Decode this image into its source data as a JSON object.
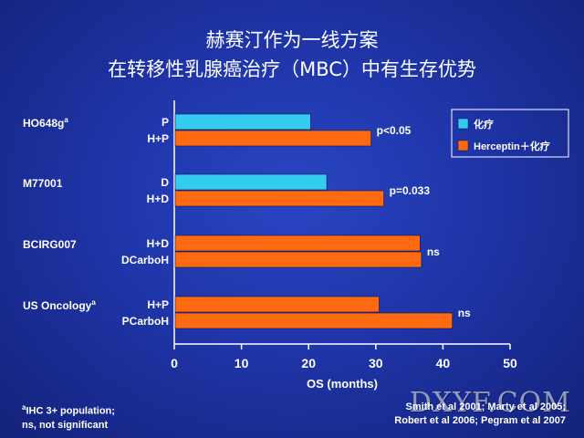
{
  "title_line1": "赫赛汀作为一线方案",
  "title_line2": "在转移性乳腺癌治疗（MBC）中有生存优势",
  "footnote_left": [
    "aIHC 3+ population;",
    "ns, not significant"
  ],
  "footnote_right": [
    "Smith et al 2001; Marty et al 2005;",
    "Robert et al 2006; Pegram et al 2007"
  ],
  "watermark": "DXYF.COM",
  "colors": {
    "chemo": "#33ccf0",
    "herceptin": "#ff6a10",
    "axis": "#ffffff"
  },
  "chart_data": {
    "type": "bar",
    "orientation": "horizontal",
    "xlabel": "OS (months)",
    "xlim": [
      0,
      50
    ],
    "xticks": [
      0,
      10,
      20,
      30,
      40,
      50
    ],
    "grid": false,
    "legend_position": "top-right",
    "legend": [
      {
        "name": "化疗",
        "color": "#33ccf0"
      },
      {
        "name": "Herceptin＋化疗",
        "color": "#ff6a10"
      }
    ],
    "groups": [
      {
        "study": "HO648g",
        "sup": "a",
        "annotation": "p<0.05",
        "bars": [
          {
            "label": "P",
            "value": 20.3,
            "series": "化疗"
          },
          {
            "label": "H+P",
            "value": 29.3,
            "series": "Herceptin＋化疗"
          }
        ]
      },
      {
        "study": "M77001",
        "sup": "",
        "annotation": "p=0.033",
        "bars": [
          {
            "label": "D",
            "value": 22.7,
            "series": "化疗"
          },
          {
            "label": "H+D",
            "value": 31.2,
            "series": "Herceptin＋化疗"
          }
        ]
      },
      {
        "study": "BCIRG007",
        "sup": "",
        "annotation": "ns",
        "bars": [
          {
            "label": "H+D",
            "value": 36.6,
            "series": "Herceptin＋化疗"
          },
          {
            "label": "DCarboH",
            "value": 36.8,
            "series": "Herceptin＋化疗"
          }
        ]
      },
      {
        "study": "US Oncology",
        "sup": "a",
        "annotation": "ns",
        "bars": [
          {
            "label": "H+P",
            "value": 30.5,
            "series": "Herceptin＋化疗"
          },
          {
            "label": "PCarboH",
            "value": 41.4,
            "series": "Herceptin＋化疗"
          }
        ]
      }
    ]
  }
}
